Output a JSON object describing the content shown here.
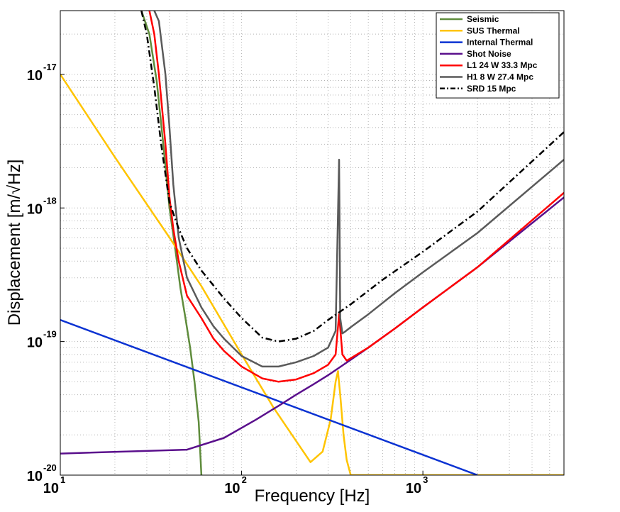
{
  "chart_data": {
    "type": "line",
    "title": "",
    "xlabel": "Frequency [Hz]",
    "ylabel": "Displacement [m/√Hz]",
    "xscale": "log",
    "yscale": "log",
    "xlim": [
      10,
      6000
    ],
    "ylim": [
      1e-20,
      3e-17
    ],
    "grid": true,
    "legend_position": "top-right",
    "x_ticks": [
      {
        "base": "10",
        "exp": "1",
        "value": 10
      },
      {
        "base": "10",
        "exp": "2",
        "value": 100
      },
      {
        "base": "10",
        "exp": "3",
        "value": 1000
      }
    ],
    "y_ticks": [
      {
        "base": "10",
        "exp": "-20",
        "value": 1e-20
      },
      {
        "base": "10",
        "exp": "-19",
        "value": 1e-19
      },
      {
        "base": "10",
        "exp": "-18",
        "value": 1e-18
      },
      {
        "base": "10",
        "exp": "-17",
        "value": 1e-17
      }
    ],
    "series": [
      {
        "name": "Seismic",
        "color": "#5f8c3c",
        "dash": "solid",
        "x": [
          28,
          31,
          34,
          37,
          40,
          43,
          46,
          49,
          52,
          55,
          58,
          60
        ],
        "y": [
          3e-17,
          2e-17,
          9e-18,
          3e-18,
          1e-18,
          5e-19,
          2.5e-19,
          1.5e-19,
          9e-20,
          5e-20,
          2.5e-20,
          1e-20
        ]
      },
      {
        "name": "SUS Thermal",
        "color": "#ffc400",
        "dash": "solid",
        "x": [
          10,
          20,
          40,
          60,
          100,
          150,
          200,
          240,
          280,
          310,
          330,
          340,
          350,
          365,
          380,
          400,
          6000
        ],
        "y": [
          1e-17,
          2.4e-18,
          6e-19,
          2.6e-19,
          8e-20,
          3.2e-20,
          1.8e-20,
          1.25e-20,
          1.5e-20,
          2.6e-20,
          5e-20,
          6e-20,
          4e-20,
          2e-20,
          1.3e-20,
          1e-20,
          1e-20
        ]
      },
      {
        "name": "Internal Thermal",
        "color": "#0a32d2",
        "dash": "solid",
        "x": [
          10,
          2000
        ],
        "y": [
          1.45e-19,
          1e-20
        ]
      },
      {
        "name": "Shot Noise",
        "color": "#5a0f8c",
        "dash": "solid",
        "x": [
          10,
          50,
          80,
          120,
          160,
          200,
          250,
          300,
          400,
          500,
          700,
          1000,
          2000,
          6000
        ],
        "y": [
          1.45e-20,
          1.55e-20,
          1.9e-20,
          2.6e-20,
          3.3e-20,
          4e-20,
          4.8e-20,
          5.6e-20,
          7.3e-20,
          9e-20,
          1.25e-19,
          1.8e-19,
          3.6e-19,
          1.2e-18
        ]
      },
      {
        "name": "L1 24 W 33.3 Mpc",
        "color": "#ff0000",
        "dash": "solid",
        "x": [
          31,
          33,
          35,
          38,
          40,
          42,
          45,
          50,
          60,
          70,
          80,
          100,
          130,
          160,
          200,
          250,
          300,
          330,
          345,
          360,
          380,
          400,
          500,
          700,
          1000,
          2000,
          6000
        ],
        "y": [
          3e-17,
          2e-17,
          1e-17,
          3e-18,
          1.2e-18,
          7e-19,
          4e-19,
          2.2e-19,
          1.5e-19,
          1.05e-19,
          8.5e-20,
          6.5e-20,
          5.3e-20,
          5e-20,
          5.2e-20,
          5.8e-20,
          6.7e-20,
          8e-20,
          1.6e-19,
          8e-20,
          7.2e-20,
          7.5e-20,
          9e-20,
          1.25e-19,
          1.8e-19,
          3.6e-19,
          1.3e-18
        ]
      },
      {
        "name": "H1  8 W 27.4 Mpc",
        "color": "#5a5a5a",
        "dash": "solid",
        "x": [
          33,
          35,
          38,
          40,
          42,
          45,
          50,
          60,
          70,
          80,
          100,
          130,
          160,
          200,
          250,
          300,
          330,
          345,
          350,
          360,
          370,
          400,
          500,
          700,
          1000,
          2000,
          6000
        ],
        "y": [
          3e-17,
          2.5e-17,
          1e-17,
          4e-18,
          1.5e-18,
          6e-19,
          3e-19,
          1.8e-19,
          1.3e-19,
          1.05e-19,
          7.8e-20,
          6.5e-20,
          6.5e-20,
          7e-20,
          7.8e-20,
          9e-20,
          1.2e-19,
          2.3e-18,
          1.5e-19,
          1.15e-19,
          1.18e-19,
          1.28e-19,
          1.6e-19,
          2.3e-19,
          3.3e-19,
          6.5e-19,
          2.3e-18
        ]
      },
      {
        "name": "SRD  15 Mpc",
        "color": "#000000",
        "dash": "dashdot",
        "x": [
          28,
          30,
          33,
          36,
          40,
          45,
          50,
          60,
          80,
          100,
          130,
          160,
          200,
          250,
          300,
          400,
          600,
          1000,
          2000,
          6000
        ],
        "y": [
          3e-17,
          2e-17,
          8e-18,
          3e-18,
          1.1e-18,
          7e-19,
          5e-19,
          3.4e-19,
          2.1e-19,
          1.5e-19,
          1.07e-19,
          1e-19,
          1.05e-19,
          1.2e-19,
          1.45e-19,
          1.9e-19,
          2.9e-19,
          4.7e-19,
          9.4e-19,
          3.7e-18
        ]
      }
    ]
  }
}
